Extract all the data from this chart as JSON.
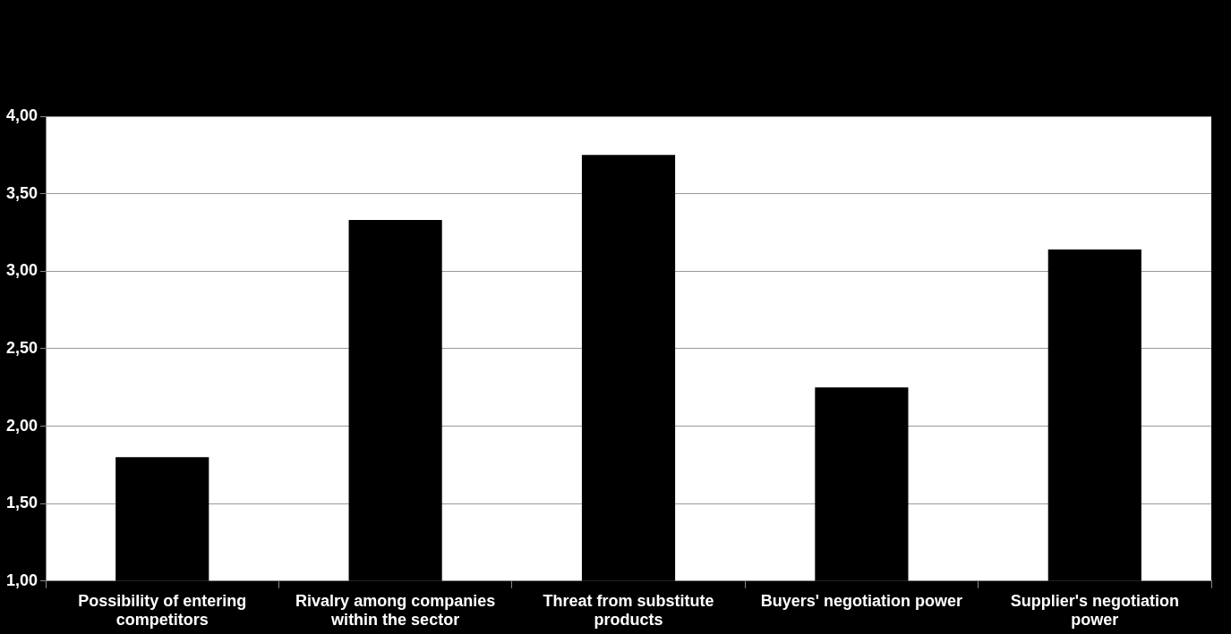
{
  "chart_data": {
    "type": "bar",
    "categories": [
      "Possibility of entering competitors",
      "Rivalry among companies within the sector",
      "Threat from substitute products",
      "Buyers' negotiation power",
      "Supplier's negotiation power"
    ],
    "values": [
      1.8,
      3.33,
      3.75,
      2.25,
      3.14
    ],
    "color": "#000000",
    "ylim": [
      1,
      4
    ],
    "yticks": [
      {
        "value": 1,
        "label": "1,00"
      },
      {
        "value": 1.5,
        "label": "1,50"
      },
      {
        "value": 2,
        "label": "2,00"
      },
      {
        "value": 2.5,
        "label": "2,50"
      },
      {
        "value": 3,
        "label": "3,00"
      },
      {
        "value": 3.5,
        "label": "3,50"
      },
      {
        "value": 4,
        "label": "4,00"
      }
    ],
    "grid": "y",
    "legend": false
  }
}
